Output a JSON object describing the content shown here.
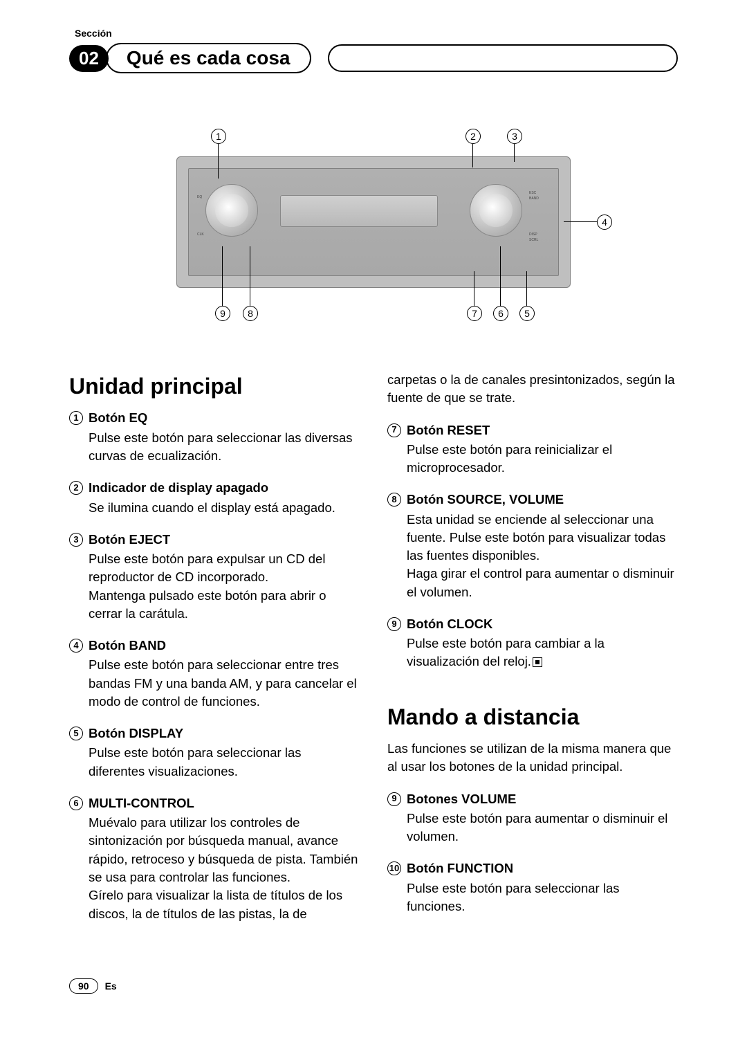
{
  "section_label": "Sección",
  "section_number": "02",
  "section_title": "Qué es cada cosa",
  "diagram": {
    "callouts": [
      "1",
      "2",
      "3",
      "4",
      "5",
      "6",
      "7",
      "8",
      "9"
    ],
    "knob_labels": {
      "eq": "EQ",
      "esc": "ESC",
      "band": "BAND",
      "clk": "CLK",
      "disp": "DISP",
      "scrl": "SCRL"
    }
  },
  "h_unidad": "Unidad principal",
  "items_left": [
    {
      "n": "1",
      "title": "Botón EQ",
      "body": "Pulse este botón para seleccionar las diversas curvas de ecualización."
    },
    {
      "n": "2",
      "title": "Indicador de display apagado",
      "body": "Se ilumina cuando el display está apagado."
    },
    {
      "n": "3",
      "title": "Botón EJECT",
      "body": "Pulse este botón para expulsar un CD del reproductor de CD incorporado.\nMantenga pulsado este botón para abrir o cerrar la carátula."
    },
    {
      "n": "4",
      "title": "Botón BAND",
      "body": "Pulse este botón para seleccionar entre tres bandas FM y una banda AM, y para cancelar el modo de control de funciones."
    },
    {
      "n": "5",
      "title": "Botón DISPLAY",
      "body": "Pulse este botón para seleccionar las diferentes visualizaciones."
    },
    {
      "n": "6",
      "title": "MULTI-CONTROL",
      "body": "Muévalo para utilizar los controles de sintonización por búsqueda manual, avance rápido, retroceso y búsqueda de pista. También se usa para controlar las funciones.\nGírelo para visualizar la lista de títulos de los discos, la de títulos de las pistas, la de"
    }
  ],
  "right_cont": "carpetas o la de canales presintonizados, según la fuente de que se trate.",
  "items_right": [
    {
      "n": "7",
      "title": "Botón RESET",
      "body": "Pulse este botón para reinicializar el microprocesador."
    },
    {
      "n": "8",
      "title": "Botón SOURCE, VOLUME",
      "body": "Esta unidad se enciende al seleccionar una fuente. Pulse este botón para visualizar todas las fuentes disponibles.\nHaga girar el control para aumentar o disminuir el volumen."
    },
    {
      "n": "9",
      "title": "Botón CLOCK",
      "body": "Pulse este botón para cambiar a la visualización del reloj.",
      "end": true
    }
  ],
  "h_mando": "Mando a distancia",
  "mando_intro": "Las funciones se utilizan de la misma manera que al usar los botones de la unidad principal.",
  "items_mando": [
    {
      "n": "9",
      "title": "Botones VOLUME",
      "body": "Pulse este botón para aumentar o disminuir el volumen."
    },
    {
      "n": "10",
      "title": "Botón FUNCTION",
      "body": "Pulse este botón para seleccionar las funciones."
    }
  ],
  "page_number": "90",
  "lang_code": "Es"
}
